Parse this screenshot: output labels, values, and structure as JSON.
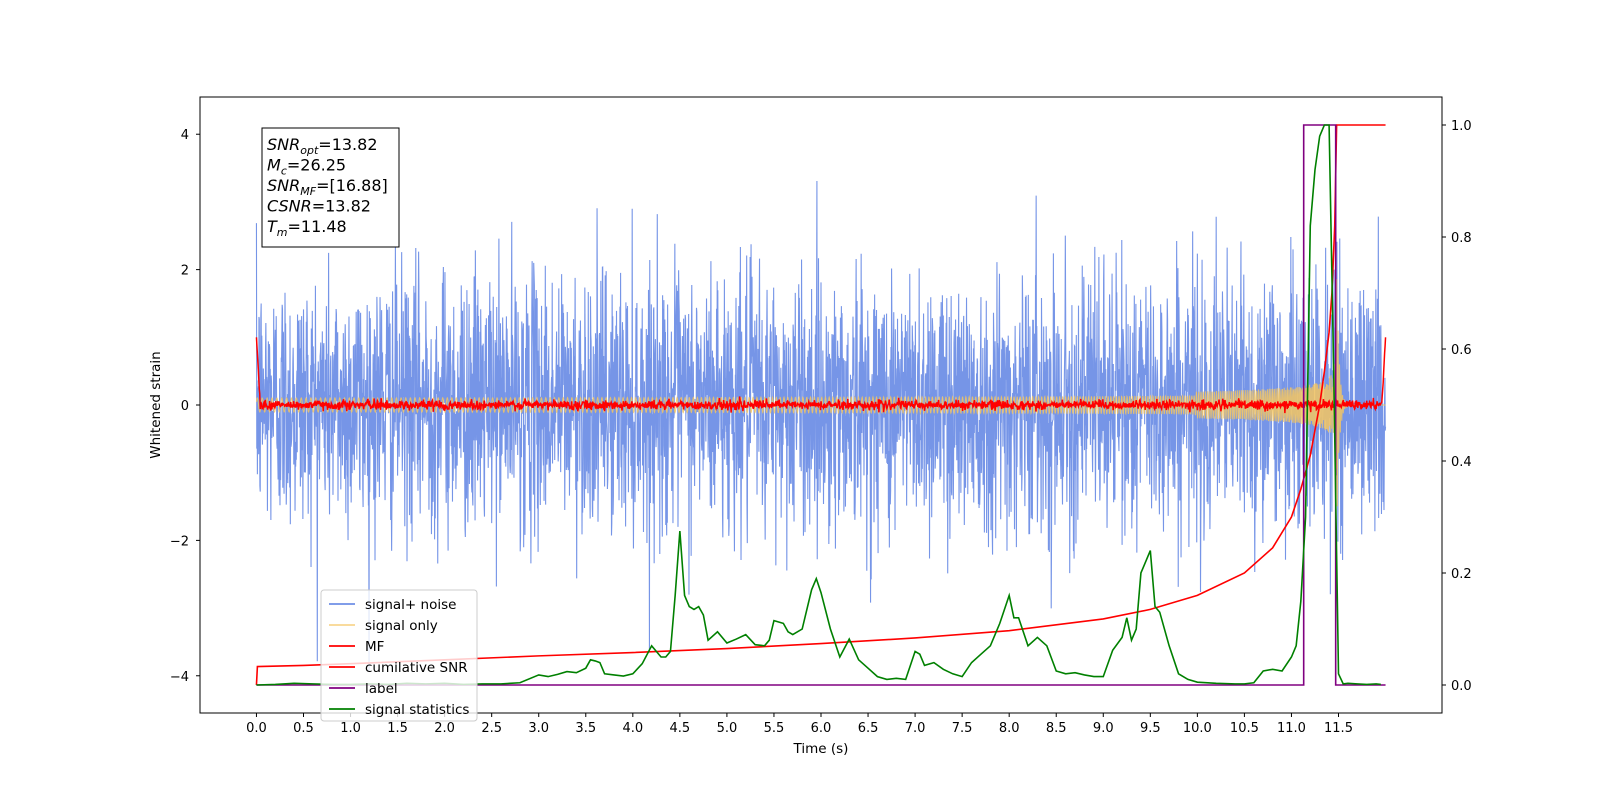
{
  "chart_data": {
    "type": "line",
    "title": "",
    "xlabel": "Time (s)",
    "ylabel": "Whitened strain",
    "y2label": "",
    "xlim": [
      -0.6,
      12.6
    ],
    "ylim": [
      -4.55,
      4.55
    ],
    "y2lim": [
      -0.05,
      1.05
    ],
    "xticks": [
      "0.0",
      "0.5",
      "1.0",
      "1.5",
      "2.0",
      "2.5",
      "3.0",
      "3.5",
      "4.0",
      "4.5",
      "5.0",
      "5.5",
      "6.0",
      "6.5",
      "7.0",
      "7.5",
      "8.0",
      "8.5",
      "9.0",
      "9.5",
      "10.0",
      "10.5",
      "11.0",
      "11.5"
    ],
    "yticks": [
      -4,
      -2,
      0,
      2,
      4
    ],
    "y2ticks": [
      "0.0",
      "0.2",
      "0.4",
      "0.6",
      "0.8",
      "1.0"
    ],
    "grid": false,
    "legend_position": "lower-left",
    "annotation": {
      "lines": [
        {
          "sym": "SNR",
          "sub": "opt",
          "value": "=13.82"
        },
        {
          "sym": "M",
          "sub": "c",
          "value": "=26.25"
        },
        {
          "sym": "SNR",
          "sub": "MF",
          "value": "=[16.88]"
        },
        {
          "sym": "CSNR",
          "sub": "",
          "value": "=13.82"
        },
        {
          "sym": "T",
          "sub": "m",
          "value": "=11.48"
        }
      ]
    },
    "series": [
      {
        "name": "signal+ noise",
        "color": "#6f8fe6",
        "axis": "left",
        "kind": "noise",
        "x_range": [
          0,
          12.0
        ],
        "amplitude_std": 0.95,
        "max_abs": 4.0
      },
      {
        "name": "signal only",
        "color": "#f5c560",
        "axis": "left",
        "kind": "chirp",
        "x_range": [
          0,
          12.0
        ],
        "merger_time": 11.48,
        "peak_amplitude": 2.1
      },
      {
        "name": "MF",
        "color": "#ff0000",
        "axis": "left",
        "kind": "mf",
        "x_range": [
          0,
          12.0
        ],
        "edge_value": 1.0,
        "baseline": 0.0
      },
      {
        "name": "cumilative SNR",
        "color": "#ff0000",
        "axis": "right",
        "x": [
          0.0,
          0.01,
          0.5,
          1.0,
          2.0,
          3.0,
          4.0,
          5.0,
          6.0,
          7.0,
          8.0,
          9.0,
          9.5,
          10.0,
          10.5,
          10.8,
          11.0,
          11.1,
          11.2,
          11.3,
          11.35,
          11.4,
          11.43,
          11.46,
          11.48,
          11.5,
          12.0
        ],
        "y": [
          0.0,
          0.033,
          0.035,
          0.038,
          0.045,
          0.052,
          0.058,
          0.065,
          0.074,
          0.084,
          0.097,
          0.118,
          0.135,
          0.16,
          0.2,
          0.245,
          0.3,
          0.35,
          0.41,
          0.5,
          0.56,
          0.63,
          0.7,
          0.82,
          1.0,
          1.0,
          1.0
        ]
      },
      {
        "name": "label",
        "color": "#800080",
        "axis": "right",
        "x": [
          0.0,
          11.13,
          11.13,
          11.43,
          11.43,
          11.47,
          11.47,
          12.0
        ],
        "y": [
          0.0,
          0.0,
          1.0,
          1.0,
          1.0,
          1.0,
          0.0,
          0.0
        ]
      },
      {
        "name": "signal statistics",
        "color": "#008000",
        "axis": "right",
        "x": [
          0.0,
          0.2,
          0.4,
          0.6,
          0.8,
          1.0,
          1.2,
          1.4,
          1.6,
          1.8,
          2.0,
          2.2,
          2.4,
          2.6,
          2.8,
          3.0,
          3.1,
          3.2,
          3.3,
          3.4,
          3.5,
          3.55,
          3.6,
          3.65,
          3.7,
          3.8,
          3.9,
          4.0,
          4.1,
          4.2,
          4.3,
          4.35,
          4.4,
          4.45,
          4.5,
          4.55,
          4.6,
          4.65,
          4.7,
          4.75,
          4.8,
          4.9,
          5.0,
          5.1,
          5.2,
          5.3,
          5.4,
          5.45,
          5.5,
          5.6,
          5.65,
          5.7,
          5.8,
          5.9,
          5.95,
          6.0,
          6.1,
          6.2,
          6.3,
          6.4,
          6.5,
          6.6,
          6.7,
          6.8,
          6.9,
          7.0,
          7.05,
          7.1,
          7.2,
          7.3,
          7.4,
          7.5,
          7.6,
          7.7,
          7.8,
          7.9,
          8.0,
          8.05,
          8.1,
          8.2,
          8.3,
          8.4,
          8.5,
          8.6,
          8.7,
          8.8,
          8.9,
          9.0,
          9.1,
          9.2,
          9.25,
          9.3,
          9.35,
          9.4,
          9.5,
          9.55,
          9.6,
          9.7,
          9.8,
          9.9,
          10.0,
          10.2,
          10.4,
          10.5,
          10.6,
          10.7,
          10.8,
          10.9,
          11.0,
          11.05,
          11.1,
          11.15,
          11.2,
          11.25,
          11.3,
          11.35,
          11.4,
          11.45,
          11.5,
          11.55,
          11.6,
          11.7,
          11.8,
          11.9,
          11.95
        ],
        "y": [
          0.0,
          0.001,
          0.003,
          0.002,
          0.001,
          0.001,
          0.002,
          0.001,
          0.003,
          0.002,
          0.003,
          0.001,
          0.002,
          0.002,
          0.004,
          0.018,
          0.015,
          0.019,
          0.024,
          0.022,
          0.03,
          0.045,
          0.043,
          0.04,
          0.02,
          0.018,
          0.016,
          0.02,
          0.038,
          0.07,
          0.05,
          0.05,
          0.06,
          0.16,
          0.275,
          0.16,
          0.14,
          0.135,
          0.14,
          0.125,
          0.08,
          0.095,
          0.075,
          0.082,
          0.09,
          0.072,
          0.07,
          0.08,
          0.115,
          0.11,
          0.095,
          0.09,
          0.1,
          0.17,
          0.19,
          0.165,
          0.1,
          0.05,
          0.082,
          0.045,
          0.03,
          0.015,
          0.01,
          0.012,
          0.01,
          0.06,
          0.055,
          0.035,
          0.04,
          0.028,
          0.02,
          0.015,
          0.04,
          0.055,
          0.07,
          0.11,
          0.16,
          0.12,
          0.12,
          0.07,
          0.085,
          0.07,
          0.025,
          0.02,
          0.022,
          0.018,
          0.015,
          0.015,
          0.062,
          0.085,
          0.12,
          0.08,
          0.1,
          0.2,
          0.24,
          0.14,
          0.13,
          0.07,
          0.02,
          0.01,
          0.005,
          0.003,
          0.002,
          0.002,
          0.004,
          0.025,
          0.028,
          0.025,
          0.05,
          0.07,
          0.15,
          0.3,
          0.82,
          0.92,
          0.98,
          1.0,
          1.0,
          0.55,
          0.02,
          0.002,
          0.003,
          0.002,
          0.001,
          0.002,
          0.001
        ]
      }
    ]
  }
}
